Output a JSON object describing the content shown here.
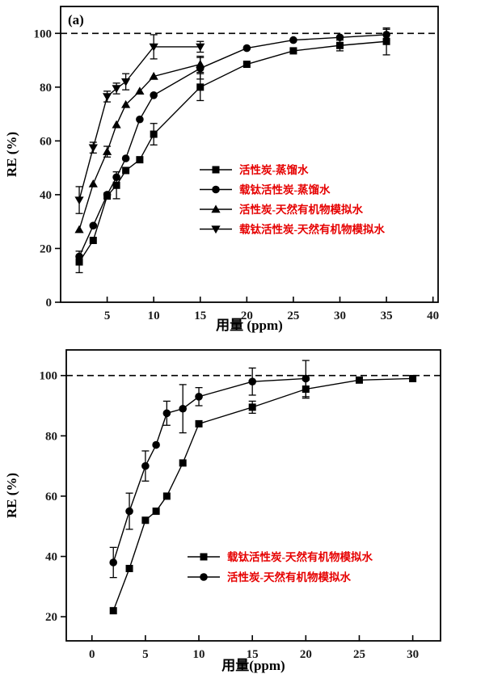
{
  "figure": {
    "background": "#ffffff",
    "plot_color": "#000000",
    "legend_text_color": "#e60000",
    "tick_label_color": "#1a1a1a"
  },
  "chart_data": [
    {
      "type": "line",
      "panel_label": "(a)",
      "title": "",
      "xlabel": "用量 (ppm)",
      "ylabel": "RE (%)",
      "xlim": [
        0,
        40.55
      ],
      "ylim": [
        0,
        110
      ],
      "xticks": [
        5,
        10,
        15,
        20,
        25,
        30,
        35,
        40
      ],
      "yticks": [
        0,
        20,
        40,
        60,
        80,
        100
      ],
      "reference_line_y": 100,
      "grid": false,
      "legend_position": "inside-center-right",
      "series": [
        {
          "name": "活性炭-蒸馏水",
          "marker": "square",
          "x": [
            2,
            3.5,
            5,
            6,
            7,
            8.5,
            10,
            15,
            20,
            25,
            30,
            35
          ],
          "y": [
            15,
            23,
            39.5,
            43.5,
            49,
            53,
            62.5,
            80,
            88.5,
            93.5,
            95.5,
            97
          ],
          "yerr": [
            4,
            0,
            0,
            5,
            0,
            0,
            4,
            5,
            0,
            0,
            2,
            5
          ]
        },
        {
          "name": "载钛活性炭-蒸馏水",
          "marker": "circle",
          "x": [
            2,
            3.5,
            5,
            6,
            7,
            8.5,
            10,
            15,
            20,
            25,
            30,
            35
          ],
          "y": [
            17,
            28.5,
            40,
            46.5,
            53.5,
            68,
            77,
            87,
            94.5,
            97.5,
            98.5,
            99.5
          ],
          "yerr": [
            0,
            0,
            0,
            0,
            0,
            0,
            0,
            4,
            0,
            0,
            0,
            2
          ]
        },
        {
          "name": "活性炭-天然有机物模拟水",
          "marker": "triangle-up",
          "x": [
            2,
            3.5,
            5,
            6,
            7,
            8.5,
            10,
            15
          ],
          "y": [
            27,
            44,
            56,
            66,
            73.5,
            78.5,
            84,
            88.5
          ],
          "yerr": [
            0,
            0,
            2,
            0,
            0,
            0,
            0,
            3
          ]
        },
        {
          "name": "载钛活性炭-天然有机物模拟水",
          "marker": "triangle-down",
          "x": [
            2,
            3.5,
            5,
            6,
            7,
            10,
            15
          ],
          "y": [
            38,
            57.5,
            76.5,
            79.5,
            82,
            95,
            95
          ],
          "yerr": [
            5,
            2,
            2,
            2,
            3,
            4.5,
            2
          ]
        }
      ]
    },
    {
      "type": "line",
      "panel_label": "",
      "title": "",
      "xlabel": "用量(ppm)",
      "ylabel": "RE (%)",
      "xlim": [
        -2.4,
        32.6
      ],
      "ylim": [
        12,
        108.5
      ],
      "xticks": [
        0,
        5,
        10,
        15,
        20,
        25,
        30
      ],
      "yticks": [
        20,
        40,
        60,
        80,
        100
      ],
      "reference_line_y": 100,
      "grid": false,
      "legend_position": "inside-center-right",
      "series": [
        {
          "name": "载钛活性炭-天然有机物模拟水",
          "marker": "square",
          "x": [
            2,
            3.5,
            5,
            6,
            7,
            8.5,
            10,
            15,
            20,
            25,
            30
          ],
          "y": [
            22,
            36,
            52,
            55,
            60,
            71,
            84,
            89.5,
            95.5,
            98.5,
            99
          ],
          "yerr": [
            0,
            0,
            0,
            0,
            0,
            0,
            0,
            2,
            3,
            0,
            0
          ]
        },
        {
          "name": "活性炭-天然有机物模拟水",
          "marker": "circle",
          "x": [
            2,
            3.5,
            5,
            6,
            7,
            8.5,
            10,
            15,
            20
          ],
          "y": [
            38,
            55,
            70,
            77,
            87.5,
            89,
            93,
            98,
            99
          ],
          "yerr": [
            5,
            6,
            5,
            0,
            4,
            8,
            3,
            4.5,
            6
          ]
        }
      ]
    }
  ]
}
